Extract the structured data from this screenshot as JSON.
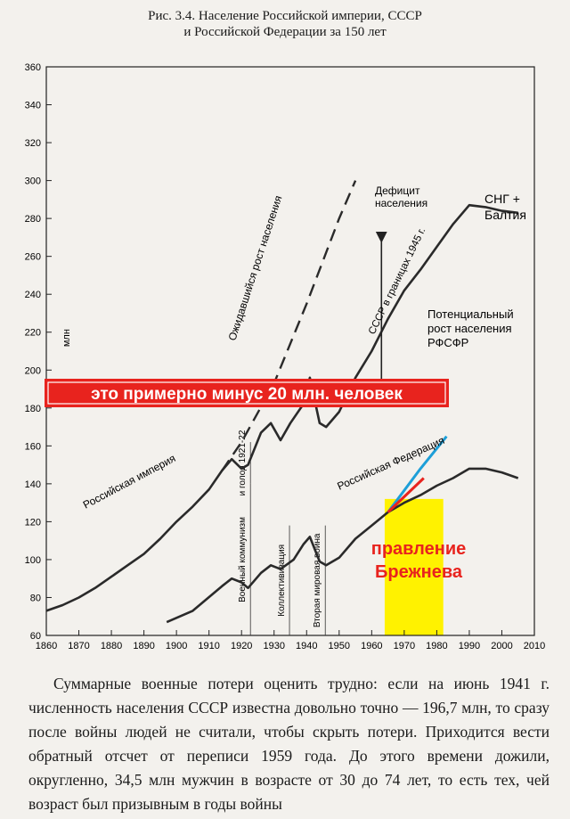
{
  "figure": {
    "caption_line1": "Рис. 3.4. Население Российской империи, СССР",
    "caption_line2": "и Российской Федерации за 150 лет"
  },
  "chart_data": {
    "type": "line",
    "title": "",
    "ylabel": "млн",
    "xlim": [
      1860,
      2010
    ],
    "ylim": [
      60,
      360
    ],
    "x_ticks": [
      1860,
      1870,
      1880,
      1890,
      1900,
      1910,
      1920,
      1930,
      1940,
      1950,
      1960,
      1970,
      1980,
      1990,
      2000,
      2010
    ],
    "y_ticks": [
      60,
      80,
      100,
      120,
      140,
      160,
      180,
      200,
      220,
      240,
      260,
      280,
      300,
      320,
      340,
      360
    ],
    "grid": false,
    "series": [
      {
        "name": "Российская империя / СССР / СНГ + Балтия",
        "x": [
          1860,
          1865,
          1870,
          1875,
          1880,
          1885,
          1890,
          1895,
          1900,
          1905,
          1910,
          1914,
          1917,
          1920,
          1922,
          1926,
          1929,
          1932,
          1935,
          1939,
          1941,
          1944,
          1946,
          1950,
          1955,
          1960,
          1965,
          1970,
          1975,
          1980,
          1985,
          1990,
          1995,
          2000,
          2005
        ],
        "y": [
          73,
          76,
          80,
          85,
          91,
          97,
          103,
          111,
          120,
          128,
          137,
          147,
          153,
          148,
          150,
          167,
          172,
          163,
          172,
          182,
          196,
          172,
          170,
          178,
          196,
          210,
          227,
          242,
          253,
          265,
          277,
          287,
          286,
          284,
          283
        ]
      },
      {
        "name": "Российская Федерация",
        "x": [
          1897,
          1905,
          1914,
          1917,
          1920,
          1922,
          1926,
          1929,
          1932,
          1936,
          1939,
          1941,
          1944,
          1946,
          1950,
          1955,
          1960,
          1965,
          1970,
          1975,
          1980,
          1985,
          1990,
          1995,
          2000,
          2005
        ],
        "y": [
          67,
          73,
          86,
          90,
          88,
          85,
          93,
          97,
          95,
          100,
          108,
          112,
          99,
          97,
          101,
          111,
          118,
          125,
          130,
          134,
          139,
          143,
          148,
          148,
          146,
          143
        ]
      },
      {
        "name": "Ожидавшийся рост населения",
        "x": [
          1914,
          1920,
          1930,
          1940,
          1950,
          1955
        ],
        "y": [
          147,
          162,
          193,
          235,
          280,
          300
        ]
      },
      {
        "name": "Потенциальный рост населения РФСФР",
        "x": [
          1965,
          1975,
          1983
        ],
        "y": [
          125,
          148,
          165
        ]
      }
    ],
    "vertical_labels": [
      {
        "x": 1920,
        "text": "и голод 1921-22",
        "range": [
          140,
          162
        ]
      },
      {
        "x": 1920,
        "text": "Военный коммунизм",
        "range": [
          60,
          140
        ]
      },
      {
        "x": 1932,
        "text": "Коллективизация",
        "range": [
          60,
          118
        ]
      },
      {
        "x": 1943,
        "text": "Вторая мировая война",
        "range": [
          60,
          118
        ]
      }
    ],
    "annotations": {
      "empire": "Российская империя",
      "ussr_1945": "СССР в границах 1945 г.",
      "expected": "Ожидавшийся рост населения",
      "rf": "Российская Федерация",
      "deficit_1": "Дефицит",
      "deficit_2": "населения",
      "cis_1": "СНГ +",
      "cis_2": "Балтия",
      "potential_1": "Потенциальный",
      "potential_2": "рост населения",
      "potential_3": "РФСФР",
      "red_banner": "это примерно минус 20 млн. человек",
      "brezhnev_1": "правление",
      "brezhnev_2": "Брежнева"
    },
    "brezhnev_period": [
      1964,
      1982
    ],
    "brezhnev_top": 132,
    "colors": {
      "banner": "#e8231e",
      "highlight": "#fff200",
      "potential": "#1d9fd8",
      "line": "#2a2a2a",
      "red_text": "#e8231e"
    }
  },
  "body_text": {
    "p1": "Суммарные военные потери оценить трудно: если на июнь 1941 г. численность населения СССР известна довольно точно — 196,7 млн, то сразу после войны людей не считали, чтобы скрыть потери. Приходится вести обратный отсчет от переписи 1959 года. До этого времени дожили, округленно, 34,5 млн мужчин в возрасте от 30 до 74 лет, то есть тех, чей возраст был призывным в годы войны"
  }
}
